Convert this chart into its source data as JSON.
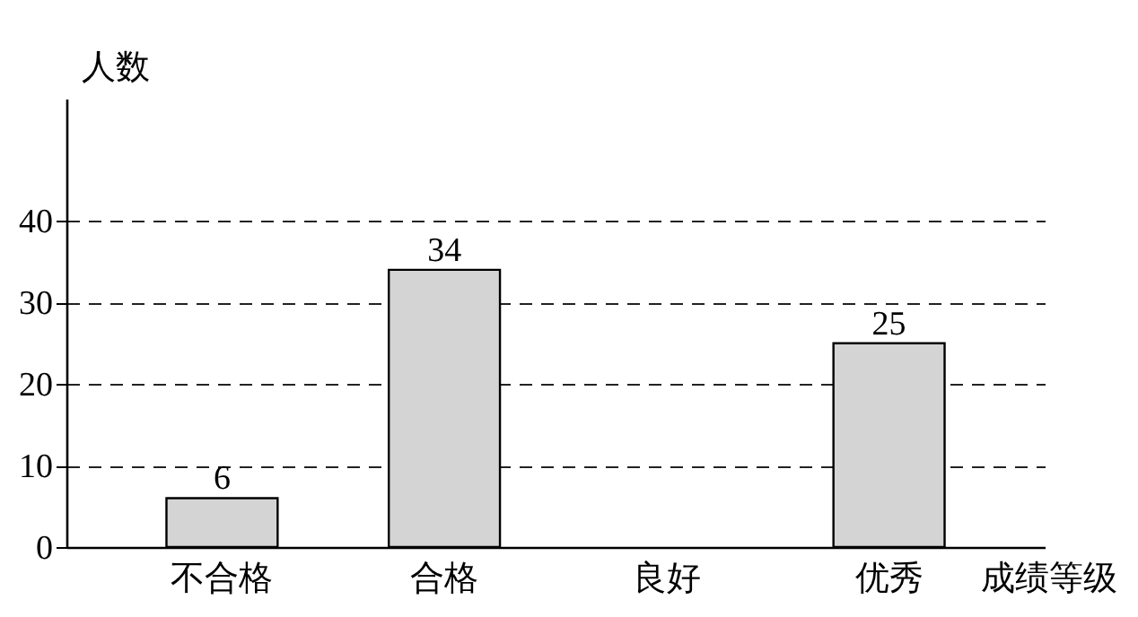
{
  "chart_data": {
    "type": "bar",
    "xlabel": "成绩等级",
    "ylabel": "人数",
    "categories": [
      "不合格",
      "合格",
      "良好",
      "优秀"
    ],
    "values": [
      6,
      34,
      null,
      25
    ],
    "color": "#d4d4d4",
    "ylim": [
      0,
      55
    ],
    "yticks": [
      0,
      10,
      20,
      30,
      40
    ],
    "grid": "y",
    "data_labels": true
  }
}
